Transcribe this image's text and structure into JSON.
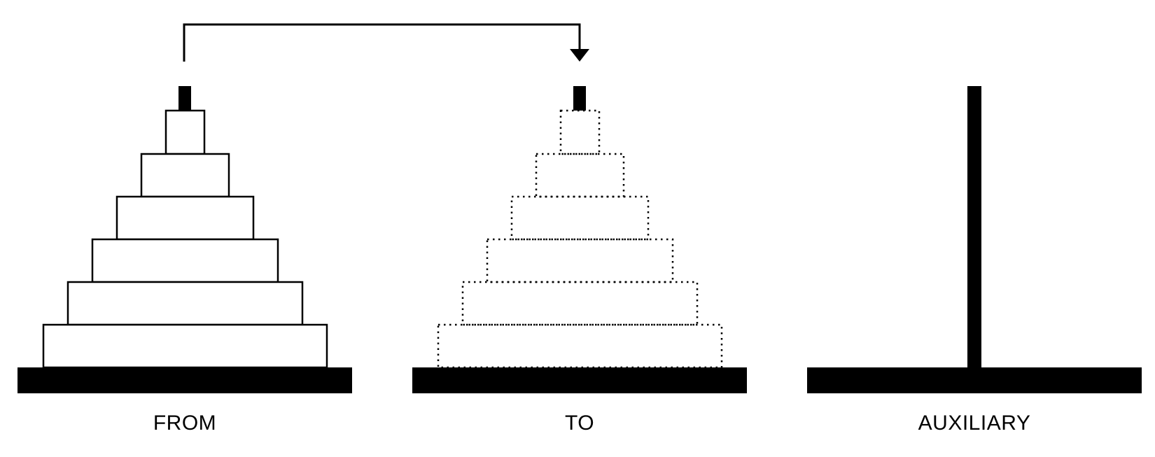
{
  "diagram": {
    "colors": {
      "ink": "#000000",
      "background": "#ffffff"
    },
    "disk_count": 6,
    "towers": [
      {
        "id": "from",
        "label": "FROM",
        "disks_style": "solid"
      },
      {
        "id": "to",
        "label": "TO",
        "disks_style": "dotted"
      },
      {
        "id": "auxiliary",
        "label": "AUXILIARY",
        "disks_style": "none"
      }
    ],
    "move_arrow": {
      "from": "from",
      "to": "to"
    }
  }
}
